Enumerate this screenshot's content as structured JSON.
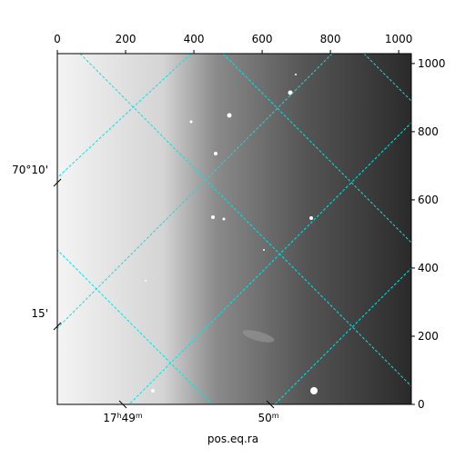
{
  "chart_data": {
    "type": "image",
    "xlabel": "pos.eq.ra",
    "xlim": [
      0,
      1037
    ],
    "ylim": [
      0,
      1029
    ],
    "xticks": [
      0,
      200,
      400,
      600,
      800,
      1000
    ],
    "yticks": [
      0,
      200,
      400,
      600,
      800,
      1000
    ],
    "ra_ticks": [
      [
        "17",
        "h",
        "49",
        "m"
      ],
      [
        "50",
        "m"
      ]
    ],
    "dec_ticks": [
      "70°10'",
      "15'"
    ],
    "grid_color": "#00e5e5"
  }
}
